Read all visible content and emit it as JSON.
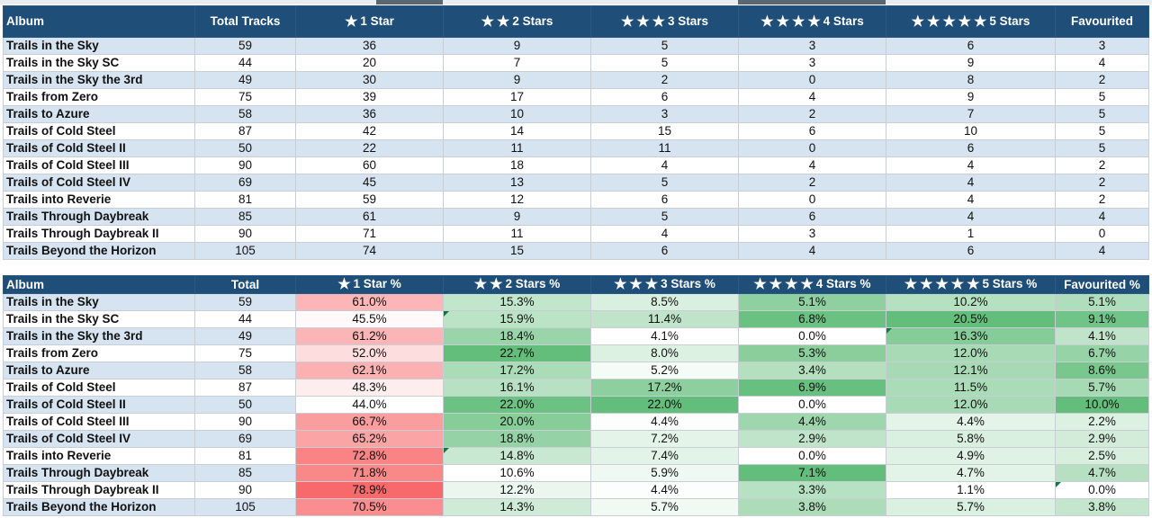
{
  "counts_table": {
    "headers": [
      {
        "label": "Album",
        "stars": 0
      },
      {
        "label": "Total Tracks",
        "stars": 0
      },
      {
        "label": "1 Star",
        "stars": 1
      },
      {
        "label": "2 Stars",
        "stars": 2
      },
      {
        "label": "3 Stars",
        "stars": 3
      },
      {
        "label": "4 Stars",
        "stars": 4
      },
      {
        "label": "5 Stars",
        "stars": 5
      },
      {
        "label": "Favourited",
        "stars": 0
      }
    ],
    "rows": [
      [
        "Trails in the Sky",
        "59",
        "36",
        "9",
        "5",
        "3",
        "6",
        "3"
      ],
      [
        "Trails in the Sky SC",
        "44",
        "20",
        "7",
        "5",
        "3",
        "9",
        "4"
      ],
      [
        "Trails in the Sky the 3rd",
        "49",
        "30",
        "9",
        "2",
        "0",
        "8",
        "2"
      ],
      [
        "Trails from Zero",
        "75",
        "39",
        "17",
        "6",
        "4",
        "9",
        "5"
      ],
      [
        "Trails to Azure",
        "58",
        "36",
        "10",
        "3",
        "2",
        "7",
        "5"
      ],
      [
        "Trails of Cold Steel",
        "87",
        "42",
        "14",
        "15",
        "6",
        "10",
        "5"
      ],
      [
        "Trails of Cold Steel II",
        "50",
        "22",
        "11",
        "11",
        "0",
        "6",
        "5"
      ],
      [
        "Trails of Cold Steel III",
        "90",
        "60",
        "18",
        "4",
        "4",
        "4",
        "2"
      ],
      [
        "Trails of Cold Steel IV",
        "69",
        "45",
        "13",
        "5",
        "2",
        "4",
        "2"
      ],
      [
        "Trails into Reverie",
        "81",
        "59",
        "12",
        "6",
        "0",
        "4",
        "2"
      ],
      [
        "Trails Through Daybreak",
        "85",
        "61",
        "9",
        "5",
        "6",
        "4",
        "4"
      ],
      [
        "Trails Through Daybreak II",
        "90",
        "71",
        "11",
        "4",
        "3",
        "1",
        "0"
      ],
      [
        "Trails Beyond the Horizon",
        "105",
        "74",
        "15",
        "6",
        "4",
        "6",
        "4"
      ]
    ]
  },
  "percent_table": {
    "headers": [
      {
        "label": "Album",
        "stars": 0
      },
      {
        "label": "Total",
        "stars": 0
      },
      {
        "label": "1 Star %",
        "stars": 1
      },
      {
        "label": "2 Stars %",
        "stars": 2
      },
      {
        "label": "3 Stars %",
        "stars": 3
      },
      {
        "label": "4 Stars %",
        "stars": 4
      },
      {
        "label": "5 Stars %",
        "stars": 5
      },
      {
        "label": "Favourited %",
        "stars": 0
      }
    ],
    "rows": [
      [
        "Trails in the Sky",
        "59",
        "61.0%",
        "15.3%",
        "8.5%",
        "5.1%",
        "10.2%",
        "5.1%"
      ],
      [
        "Trails in the Sky SC",
        "44",
        "45.5%",
        "15.9%",
        "11.4%",
        "6.8%",
        "20.5%",
        "9.1%"
      ],
      [
        "Trails in the Sky the 3rd",
        "49",
        "61.2%",
        "18.4%",
        "4.1%",
        "0.0%",
        "16.3%",
        "4.1%"
      ],
      [
        "Trails from Zero",
        "75",
        "52.0%",
        "22.7%",
        "8.0%",
        "5.3%",
        "12.0%",
        "6.7%"
      ],
      [
        "Trails to Azure",
        "58",
        "62.1%",
        "17.2%",
        "5.2%",
        "3.4%",
        "12.1%",
        "8.6%"
      ],
      [
        "Trails of Cold Steel",
        "87",
        "48.3%",
        "16.1%",
        "17.2%",
        "6.9%",
        "11.5%",
        "5.7%"
      ],
      [
        "Trails of Cold Steel II",
        "50",
        "44.0%",
        "22.0%",
        "22.0%",
        "0.0%",
        "12.0%",
        "10.0%"
      ],
      [
        "Trails of Cold Steel III",
        "90",
        "66.7%",
        "20.0%",
        "4.4%",
        "4.4%",
        "4.4%",
        "2.2%"
      ],
      [
        "Trails of Cold Steel IV",
        "69",
        "65.2%",
        "18.8%",
        "7.2%",
        "2.9%",
        "5.8%",
        "2.9%"
      ],
      [
        "Trails into Reverie",
        "81",
        "72.8%",
        "14.8%",
        "7.4%",
        "0.0%",
        "4.9%",
        "2.5%"
      ],
      [
        "Trails Through Daybreak",
        "85",
        "71.8%",
        "10.6%",
        "5.9%",
        "7.1%",
        "4.7%",
        "4.7%"
      ],
      [
        "Trails Through Daybreak II",
        "90",
        "78.9%",
        "12.2%",
        "4.4%",
        "3.3%",
        "1.1%",
        "0.0%"
      ],
      [
        "Trails Beyond the Horizon",
        "105",
        "70.5%",
        "14.3%",
        "5.7%",
        "3.8%",
        "5.7%",
        "3.8%"
      ]
    ],
    "note_markers": [
      {
        "row": 1,
        "col": 3
      },
      {
        "row": 2,
        "col": 6
      },
      {
        "row": 9,
        "col": 3
      },
      {
        "row": 11,
        "col": 7
      }
    ]
  },
  "colors": {
    "header_bg": "#1f4e79",
    "band_bg": "#d6e3f0",
    "scale_low_red": "#ffffff",
    "scale_high_red": "#f8696b",
    "scale_low_green": "#ffffff",
    "scale_high_green": "#63be7b"
  },
  "icons": {
    "star": "star-icon"
  }
}
